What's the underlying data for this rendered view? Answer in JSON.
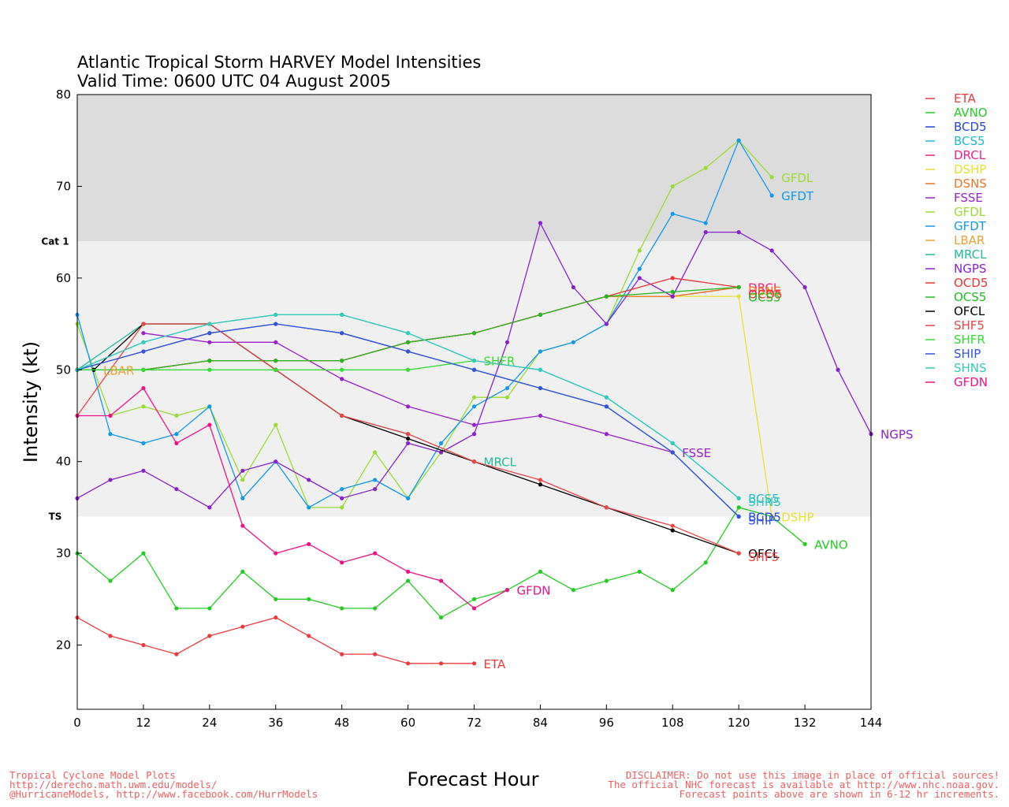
{
  "chart_data": {
    "type": "line",
    "title": "Atlantic Tropical Storm HARVEY Model Intensities",
    "subtitle": "Valid Time: 0600 UTC 04 August 2005",
    "xlabel": "Forecast Hour",
    "ylabel": "Intensity (kt)",
    "xlim": [
      0,
      144
    ],
    "ylim": [
      13,
      80
    ],
    "xticks": [
      0,
      12,
      24,
      36,
      48,
      60,
      72,
      84,
      96,
      108,
      120,
      132,
      144
    ],
    "yticks": [
      20,
      30,
      40,
      50,
      60,
      70,
      80
    ],
    "grid": false,
    "legend_position": "right",
    "bands": [
      {
        "from": 64,
        "to": 80,
        "color": "#dcdcdc",
        "label": "Cat 1",
        "label_at": 64
      },
      {
        "from": 34,
        "to": 64,
        "color": "#f0f0f0",
        "label": "TS",
        "label_at": 34
      }
    ],
    "series": [
      {
        "name": "ETA",
        "color": "#ee3a3a",
        "end_label": "ETA",
        "x": [
          0,
          6,
          12,
          18,
          24,
          30,
          36,
          42,
          48,
          54,
          60,
          66,
          72
        ],
        "y": [
          23,
          21,
          20,
          19,
          21,
          22,
          23,
          21,
          19,
          19,
          18,
          18,
          18
        ]
      },
      {
        "name": "AVNO",
        "color": "#22cc22",
        "end_label": "AVNO",
        "x": [
          0,
          6,
          12,
          18,
          24,
          30,
          36,
          42,
          48,
          54,
          60,
          66,
          72,
          78,
          84,
          90,
          96,
          102,
          108,
          114,
          120,
          126,
          132
        ],
        "y": [
          30,
          27,
          30,
          24,
          24,
          28,
          25,
          25,
          24,
          24,
          27,
          23,
          25,
          26,
          28,
          26,
          27,
          28,
          26,
          29,
          35,
          34,
          31
        ]
      },
      {
        "name": "BCD5",
        "color": "#2244dd",
        "end_label": "BCD5",
        "x": [
          0,
          12,
          24,
          36,
          48,
          60,
          72,
          84,
          96,
          108,
          120
        ],
        "y": [
          50,
          52,
          54,
          55,
          54,
          52,
          50,
          48,
          46,
          41,
          34
        ]
      },
      {
        "name": "BCS5",
        "color": "#22bbcc",
        "end_label": "BCS5",
        "x": [
          0,
          12,
          24,
          36,
          48,
          60,
          72,
          84,
          96,
          108,
          120
        ],
        "y": [
          50,
          53,
          55,
          56,
          56,
          54,
          51,
          50,
          47,
          42,
          36
        ]
      },
      {
        "name": "DRCL",
        "color": "#ee2288",
        "end_label": "DRCL",
        "x": [
          0,
          12,
          24,
          36,
          48,
          60,
          72,
          84,
          96,
          108,
          120
        ],
        "y": [
          50,
          50,
          51,
          51,
          51,
          53,
          54,
          56,
          58,
          58,
          59
        ]
      },
      {
        "name": "DSHP",
        "color": "#e8e033",
        "end_label": "DSHP",
        "x": [
          0,
          12,
          24,
          36,
          48,
          60,
          72,
          84,
          96,
          108,
          120,
          126
        ],
        "y": [
          50,
          50,
          51,
          51,
          51,
          53,
          54,
          56,
          58,
          58,
          58,
          34
        ]
      },
      {
        "name": "DSNS",
        "color": "#ee7722",
        "end_label": "DSNS",
        "x": [
          0,
          12,
          24,
          36,
          48,
          60,
          72,
          84,
          96,
          108,
          120
        ],
        "y": [
          50,
          50,
          51,
          51,
          51,
          53,
          54,
          56,
          58,
          58,
          59
        ]
      },
      {
        "name": "FSSE",
        "color": "#9922cc",
        "end_label": "FSSE",
        "x": [
          12,
          24,
          36,
          48,
          60,
          72,
          84,
          96,
          108
        ],
        "y": [
          54,
          53,
          53,
          49,
          46,
          44,
          45,
          43,
          41
        ]
      },
      {
        "name": "GFDL",
        "color": "#99dd33",
        "end_label": "GFDL",
        "x": [
          0,
          6,
          12,
          18,
          24,
          30,
          36,
          42,
          48,
          54,
          60,
          66,
          72,
          78,
          84,
          90,
          96,
          102,
          108,
          114,
          120,
          126
        ],
        "y": [
          55,
          45,
          46,
          45,
          46,
          38,
          44,
          35,
          35,
          41,
          36,
          41,
          47,
          47,
          52,
          53,
          55,
          63,
          70,
          72,
          75,
          71
        ]
      },
      {
        "name": "GFDT",
        "color": "#1199ee",
        "end_label": "GFDT",
        "x": [
          0,
          6,
          12,
          18,
          24,
          30,
          36,
          42,
          48,
          54,
          60,
          66,
          72,
          78,
          84,
          90,
          96,
          102,
          108,
          114,
          120,
          126
        ],
        "y": [
          56,
          43,
          42,
          43,
          46,
          36,
          40,
          35,
          37,
          38,
          36,
          42,
          46,
          48,
          52,
          53,
          55,
          61,
          67,
          66,
          75,
          69
        ]
      },
      {
        "name": "LBAR",
        "color": "#e8a233",
        "end_label": "LBAR",
        "x": [
          0,
          3
        ],
        "y": [
          50,
          50
        ]
      },
      {
        "name": "MRCL",
        "color": "#22bb99",
        "end_label": "MRCL",
        "x": [
          0,
          12,
          24,
          36,
          48,
          60,
          72
        ],
        "y": [
          50,
          55,
          55,
          50,
          45,
          43,
          40
        ]
      },
      {
        "name": "NGPS",
        "color": "#8822cc",
        "end_label": "NGPS",
        "x": [
          0,
          6,
          12,
          18,
          24,
          30,
          36,
          42,
          48,
          54,
          60,
          66,
          72,
          78,
          84,
          90,
          96,
          102,
          108,
          114,
          120,
          126,
          132,
          138,
          144
        ],
        "y": [
          36,
          38,
          39,
          37,
          35,
          39,
          40,
          38,
          36,
          37,
          42,
          41,
          43,
          53,
          66,
          59,
          55,
          60,
          58,
          65,
          65,
          63,
          59,
          50,
          43
        ]
      },
      {
        "name": "OCD5",
        "color": "#ee3333",
        "end_label": "OCD5",
        "x": [
          0,
          12,
          24,
          36,
          48,
          60,
          72,
          84,
          96,
          108,
          120
        ],
        "y": [
          50,
          50,
          51,
          51,
          51,
          53,
          54,
          56,
          58,
          60,
          59
        ]
      },
      {
        "name": "OCS5",
        "color": "#22bb22",
        "end_label": "OCS5",
        "x": [
          0,
          12,
          24,
          36,
          48,
          60,
          72,
          84,
          96,
          108,
          120
        ],
        "y": [
          50,
          50,
          51,
          51,
          51,
          53,
          54,
          56,
          58,
          58.5,
          59
        ]
      },
      {
        "name": "OFCL",
        "color": "#000000",
        "end_label": "OFCL",
        "x": [
          3,
          12,
          24,
          36,
          48,
          60,
          72,
          84,
          96,
          108,
          120
        ],
        "y": [
          50,
          55,
          55,
          50,
          45,
          42.5,
          40,
          37.5,
          35,
          32.5,
          30
        ]
      },
      {
        "name": "SHF5",
        "color": "#ee4444",
        "end_label": "SHF5",
        "x": [
          0,
          12,
          24,
          36,
          48,
          60,
          72,
          84,
          96,
          108,
          120
        ],
        "y": [
          45,
          55,
          55,
          50,
          45,
          43,
          40,
          38,
          35,
          33,
          30
        ]
      },
      {
        "name": "SHFR",
        "color": "#33dd33",
        "end_label": "SHFR",
        "x": [
          0,
          12,
          24,
          36,
          48,
          60,
          72
        ],
        "y": [
          50,
          50,
          50,
          50,
          50,
          50,
          51
        ]
      },
      {
        "name": "SHIP",
        "color": "#3355dd",
        "end_label": "SHIP",
        "x": [
          0,
          12,
          24,
          36,
          48,
          60,
          72,
          84,
          96,
          108,
          120
        ],
        "y": [
          50,
          52,
          54,
          55,
          54,
          52,
          50,
          48,
          46,
          41,
          34
        ]
      },
      {
        "name": "SHNS",
        "color": "#33ccbb",
        "end_label": "SHNS",
        "x": [
          0,
          12,
          24,
          36,
          48,
          60,
          72,
          84,
          96,
          108,
          120
        ],
        "y": [
          50,
          53,
          55,
          56,
          56,
          54,
          51,
          50,
          47,
          42,
          36
        ]
      },
      {
        "name": "GFDN",
        "color": "#ee1188",
        "end_label": "GFDN",
        "x": [
          0,
          6,
          12,
          18,
          24,
          30,
          36,
          42,
          48,
          54,
          60,
          66,
          72,
          78
        ],
        "y": [
          45,
          45,
          48,
          42,
          44,
          33,
          30,
          31,
          29,
          30,
          28,
          27,
          24,
          26
        ]
      }
    ]
  },
  "footer": {
    "left_line1": "Tropical Cyclone Model Plots",
    "left_line2": "http://derecho.math.uwm.edu/models/",
    "left_line3": "@HurricaneModels, http://www.facebook.com/HurrModels",
    "right_line1": "DISCLAIMER: Do not use this image in place of official sources!",
    "right_line2": "The official NHC forecast is available at http://www.nhc.noaa.gov.",
    "right_line3": "Forecast points above are shown in 6-12 hr increments."
  }
}
